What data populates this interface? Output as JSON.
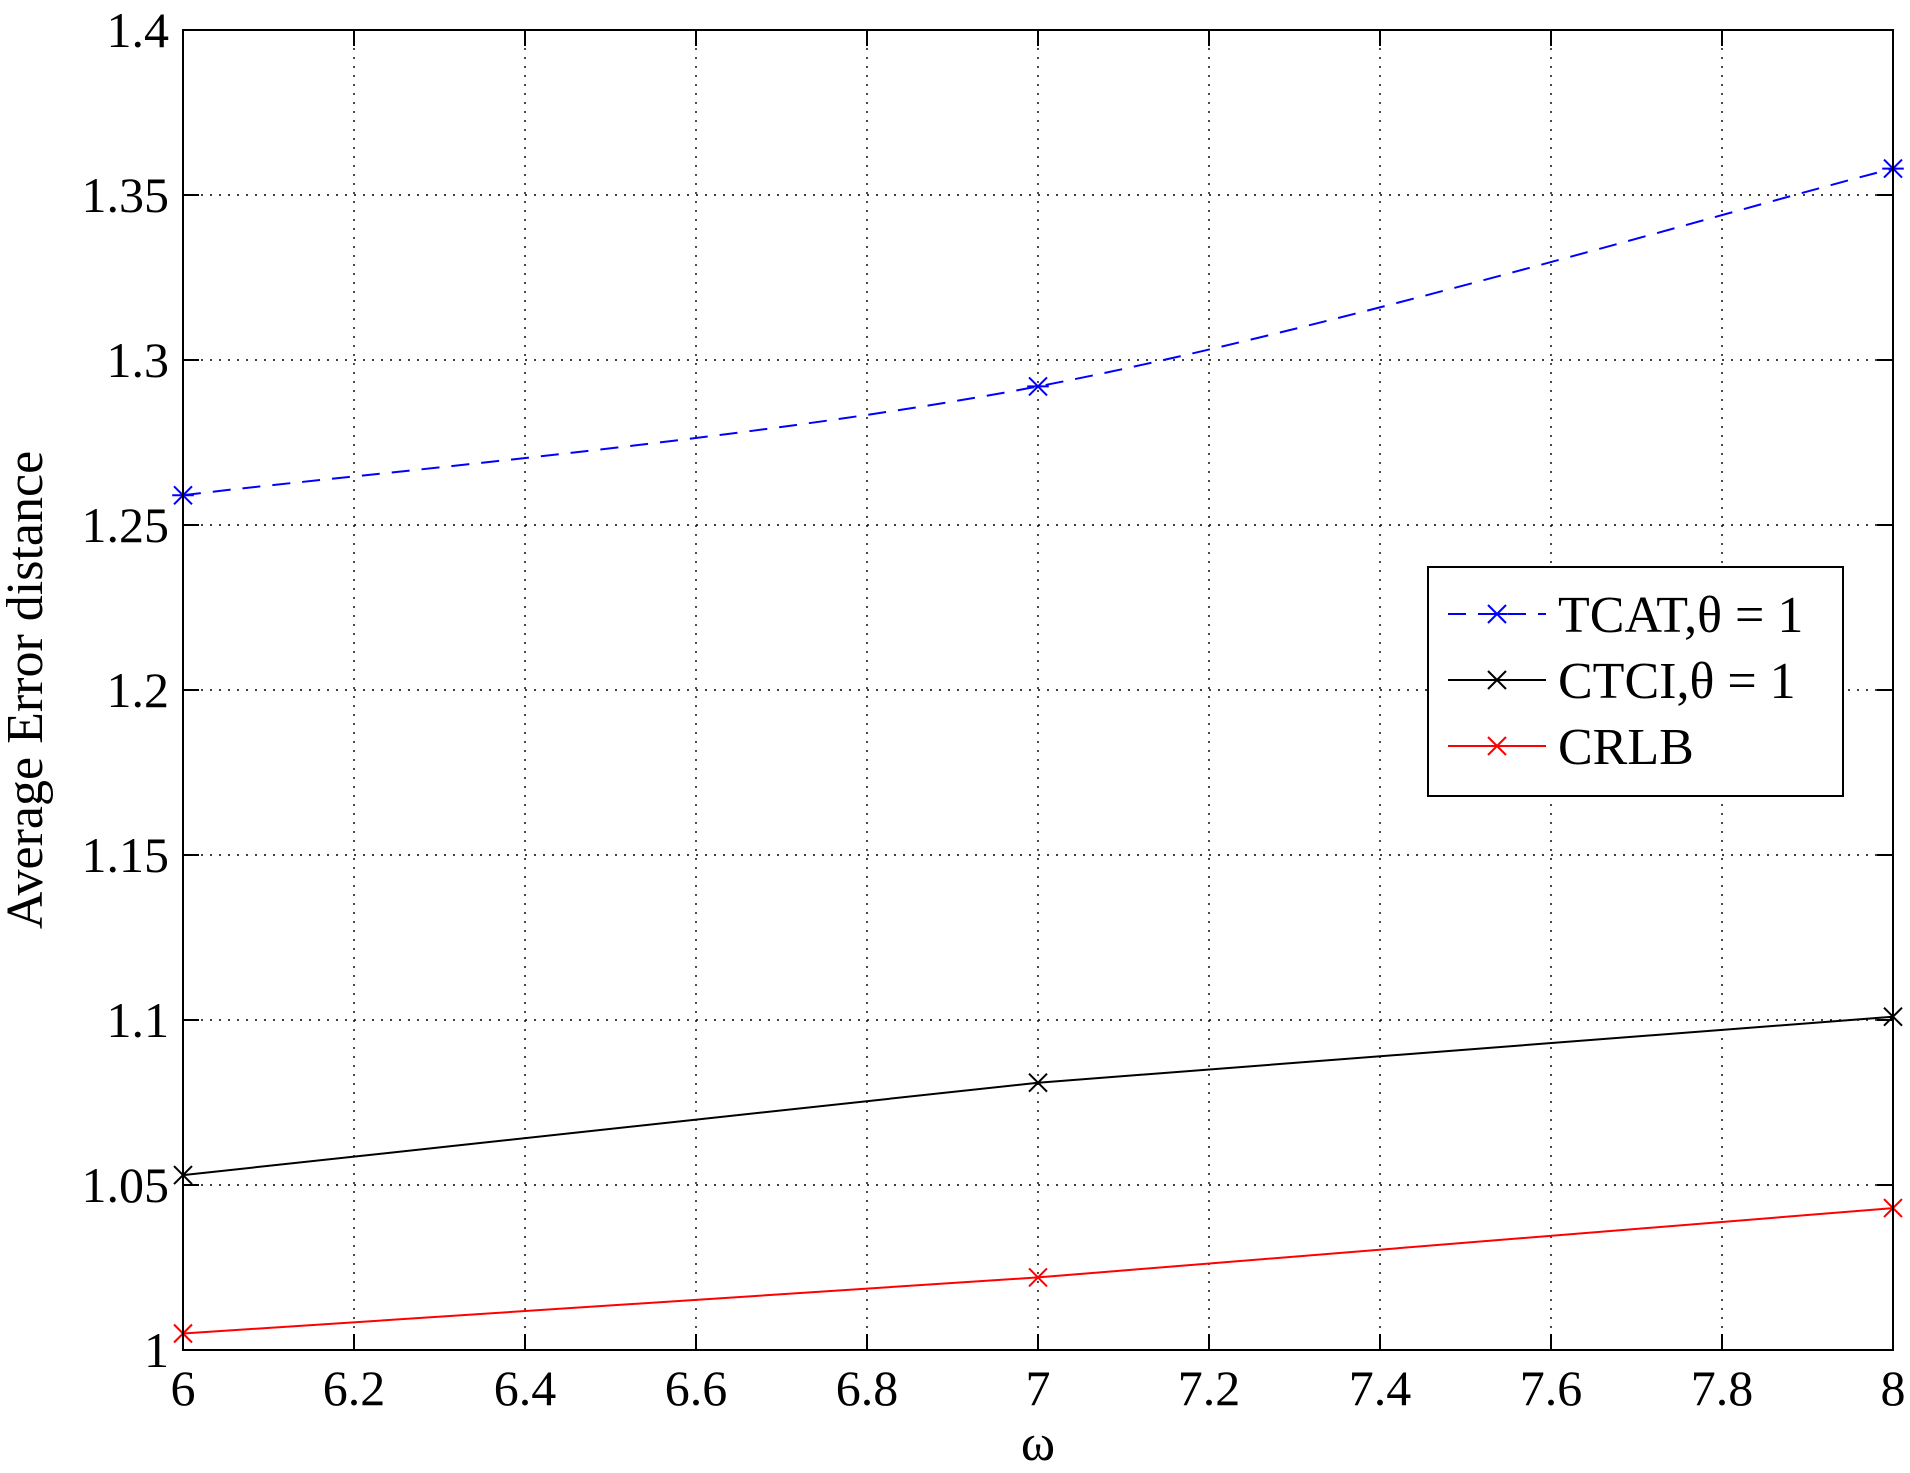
{
  "chart_data": {
    "type": "line",
    "title": "",
    "xlabel": "ω",
    "ylabel": "Average Error distance",
    "xlim": [
      6,
      8
    ],
    "ylim": [
      1,
      1.4
    ],
    "xticks": [
      6,
      6.2,
      6.4,
      6.6,
      6.8,
      7,
      7.2,
      7.4,
      7.6,
      7.8,
      8
    ],
    "yticks": [
      1,
      1.05,
      1.1,
      1.15,
      1.2,
      1.25,
      1.3,
      1.35,
      1.4
    ],
    "xtick_labels": [
      "6",
      "6.2",
      "6.4",
      "6.6",
      "6.8",
      "7",
      "7.2",
      "7.4",
      "7.6",
      "7.8",
      "8"
    ],
    "ytick_labels": [
      "1",
      "1.05",
      "1.1",
      "1.15",
      "1.2",
      "1.25",
      "1.3",
      "1.35",
      "1.4"
    ],
    "grid": true,
    "legend_position": "right",
    "x": [
      6,
      7,
      8
    ],
    "series": [
      {
        "name": "TCAT,θ = 1",
        "values": [
          1.259,
          1.292,
          1.358
        ],
        "color": "#0000ff",
        "style": "dashed",
        "marker": "asterisk",
        "smooth": true
      },
      {
        "name": "CTCI,θ = 1",
        "values": [
          1.053,
          1.081,
          1.101
        ],
        "color": "#000000",
        "style": "solid",
        "marker": "x",
        "smooth": false
      },
      {
        "name": "CRLB",
        "values": [
          1.005,
          1.022,
          1.043
        ],
        "color": "#ff0000",
        "style": "solid",
        "marker": "x",
        "smooth": false
      }
    ]
  }
}
